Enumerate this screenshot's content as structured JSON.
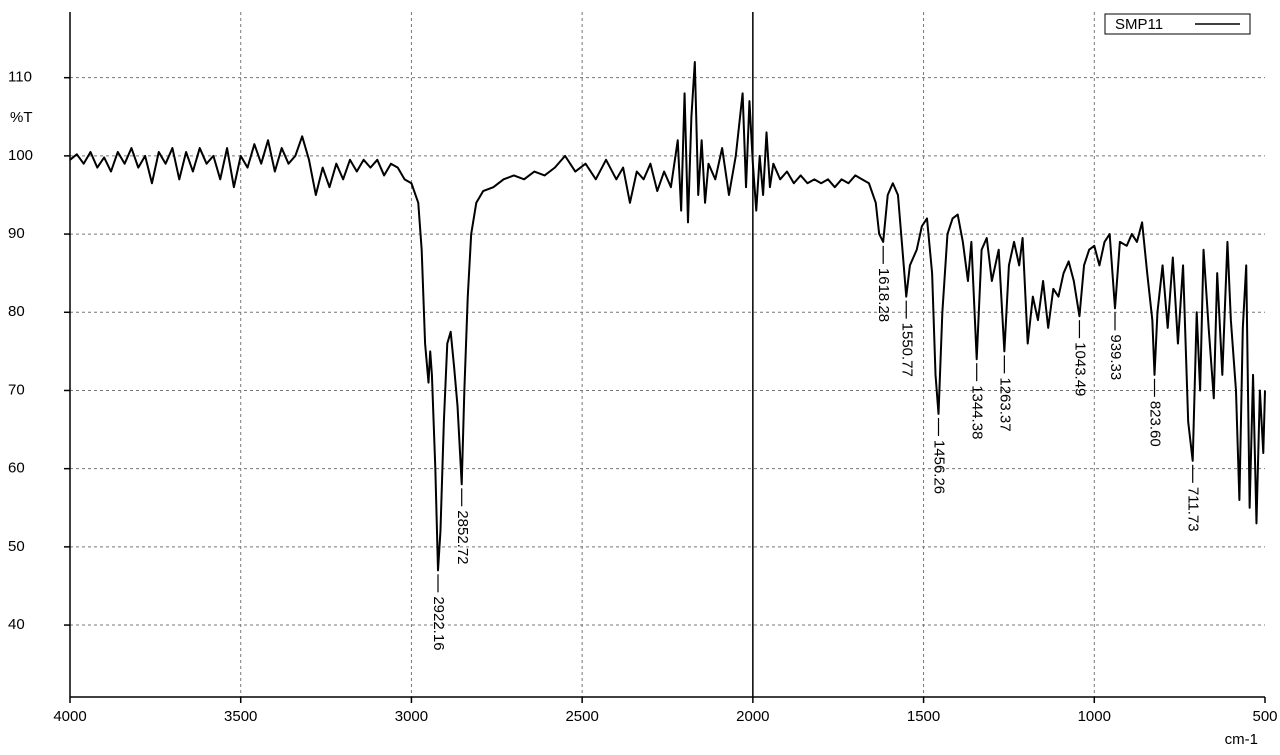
{
  "chart_data": {
    "type": "line",
    "y_label": "%T",
    "x_label": "cm-1",
    "xlim": [
      4000,
      500
    ],
    "ylim": [
      30.8,
      118.4
    ],
    "xticks": [
      4000,
      3500,
      3000,
      2500,
      2000,
      1500,
      1000,
      500
    ],
    "yticks": [
      40,
      50,
      60,
      70,
      80,
      90,
      100,
      110
    ],
    "grid": true,
    "vline": 2000,
    "legend": "top-right",
    "x": [
      4000,
      3980,
      3960,
      3940,
      3920,
      3900,
      3880,
      3860,
      3840,
      3820,
      3800,
      3780,
      3760,
      3740,
      3720,
      3700,
      3680,
      3660,
      3640,
      3620,
      3600,
      3580,
      3560,
      3540,
      3520,
      3500,
      3480,
      3460,
      3440,
      3420,
      3400,
      3380,
      3360,
      3340,
      3320,
      3300,
      3280,
      3260,
      3240,
      3220,
      3200,
      3180,
      3160,
      3140,
      3120,
      3100,
      3080,
      3060,
      3040,
      3020,
      3000,
      2980,
      2970,
      2960,
      2950,
      2945,
      2940,
      2930,
      2922.16,
      2915,
      2905,
      2895,
      2885,
      2875,
      2865,
      2852.72,
      2845,
      2835,
      2825,
      2810,
      2790,
      2760,
      2730,
      2700,
      2670,
      2640,
      2610,
      2580,
      2550,
      2520,
      2490,
      2460,
      2430,
      2400,
      2380,
      2360,
      2340,
      2320,
      2300,
      2280,
      2260,
      2240,
      2220,
      2210,
      2200,
      2190,
      2180,
      2170,
      2160,
      2150,
      2140,
      2130,
      2110,
      2090,
      2070,
      2050,
      2040,
      2030,
      2020,
      2010,
      2000,
      1990,
      1980,
      1970,
      1960,
      1950,
      1940,
      1920,
      1900,
      1880,
      1860,
      1840,
      1820,
      1800,
      1780,
      1760,
      1740,
      1720,
      1700,
      1680,
      1660,
      1640,
      1630,
      1618.28,
      1605,
      1590,
      1575,
      1560,
      1550.77,
      1540,
      1520,
      1505,
      1490,
      1475,
      1465,
      1456.26,
      1445,
      1430,
      1415,
      1400,
      1385,
      1370,
      1360,
      1344.38,
      1330,
      1315,
      1300,
      1280,
      1263.37,
      1250,
      1235,
      1220,
      1210,
      1195,
      1180,
      1165,
      1150,
      1135,
      1120,
      1105,
      1090,
      1075,
      1060,
      1043.49,
      1030,
      1015,
      1000,
      985,
      970,
      955,
      939.33,
      925,
      905,
      890,
      875,
      860,
      845,
      830,
      823.6,
      815,
      800,
      785,
      770,
      755,
      740,
      725,
      711.73,
      700,
      690,
      680,
      665,
      650,
      640,
      625,
      610,
      600,
      585,
      575,
      565,
      555,
      545,
      535,
      525,
      515,
      505,
      500
    ],
    "series": [
      {
        "name": "SMP11",
        "color": "#000000",
        "values": [
          99.5,
          100.2,
          99,
          100.5,
          98.5,
          99.8,
          98,
          100.5,
          99,
          101,
          98.5,
          100,
          96.5,
          100.5,
          99,
          101,
          97,
          100.5,
          98,
          101,
          99,
          100,
          97,
          101,
          96,
          100,
          98.5,
          101.5,
          99,
          102,
          98,
          101,
          99,
          100,
          102.5,
          99.5,
          95,
          98.5,
          96,
          99,
          97,
          99.5,
          98,
          99.5,
          98.5,
          99.5,
          97.5,
          99,
          98.5,
          97,
          96.5,
          94,
          88,
          76,
          71,
          75,
          72,
          60,
          47,
          52,
          66,
          76,
          77.5,
          73,
          68,
          58,
          70,
          82,
          90,
          94,
          95.5,
          96,
          97,
          97.5,
          97,
          98,
          97.5,
          98.5,
          100,
          98,
          99,
          97,
          99.5,
          97,
          98.5,
          94,
          98,
          97,
          99,
          95.5,
          98,
          96,
          102,
          93,
          108,
          91.5,
          105,
          112,
          95,
          102,
          94,
          99,
          97,
          101,
          95,
          100,
          104,
          108,
          96,
          107,
          99,
          93,
          100,
          95,
          103,
          96,
          99,
          97,
          98,
          96.5,
          97.5,
          96.5,
          97,
          96.5,
          97,
          96,
          97,
          96.5,
          97.5,
          97,
          96.5,
          94,
          90,
          89,
          95,
          96.5,
          95,
          87,
          82,
          86,
          88,
          91,
          92,
          85,
          72,
          67,
          80,
          90,
          92,
          92.5,
          89,
          84,
          89,
          74,
          88,
          89.5,
          84,
          88,
          75,
          86,
          89,
          86,
          89.5,
          76,
          82,
          79,
          84,
          78,
          83,
          82,
          85,
          86.5,
          84,
          79.5,
          86,
          88,
          88.5,
          86,
          89,
          90,
          80.5,
          89,
          88.5,
          90,
          89,
          91.5,
          85,
          79,
          72,
          80,
          86,
          78,
          87,
          76,
          86,
          66,
          61,
          80,
          70,
          88,
          78,
          69,
          85,
          72,
          89,
          79,
          70,
          56,
          78,
          86,
          55,
          72,
          53,
          70,
          62,
          70
        ]
      }
    ],
    "peaks": [
      {
        "x": 2922.16,
        "y": 47,
        "label": "2922.16"
      },
      {
        "x": 2852.72,
        "y": 58,
        "label": "2852.72"
      },
      {
        "x": 1618.28,
        "y": 89,
        "label": "1618.28"
      },
      {
        "x": 1550.77,
        "y": 82,
        "label": "1550.77"
      },
      {
        "x": 1456.26,
        "y": 67,
        "label": "1456.26"
      },
      {
        "x": 1344.38,
        "y": 74,
        "label": "1344.38"
      },
      {
        "x": 1263.37,
        "y": 75,
        "label": "1263.37"
      },
      {
        "x": 1043.49,
        "y": 79.5,
        "label": "1043.49"
      },
      {
        "x": 939.33,
        "y": 80.5,
        "label": "939.33"
      },
      {
        "x": 823.6,
        "y": 72,
        "label": "823.60"
      },
      {
        "x": 711.73,
        "y": 61,
        "label": "711.73"
      }
    ]
  }
}
